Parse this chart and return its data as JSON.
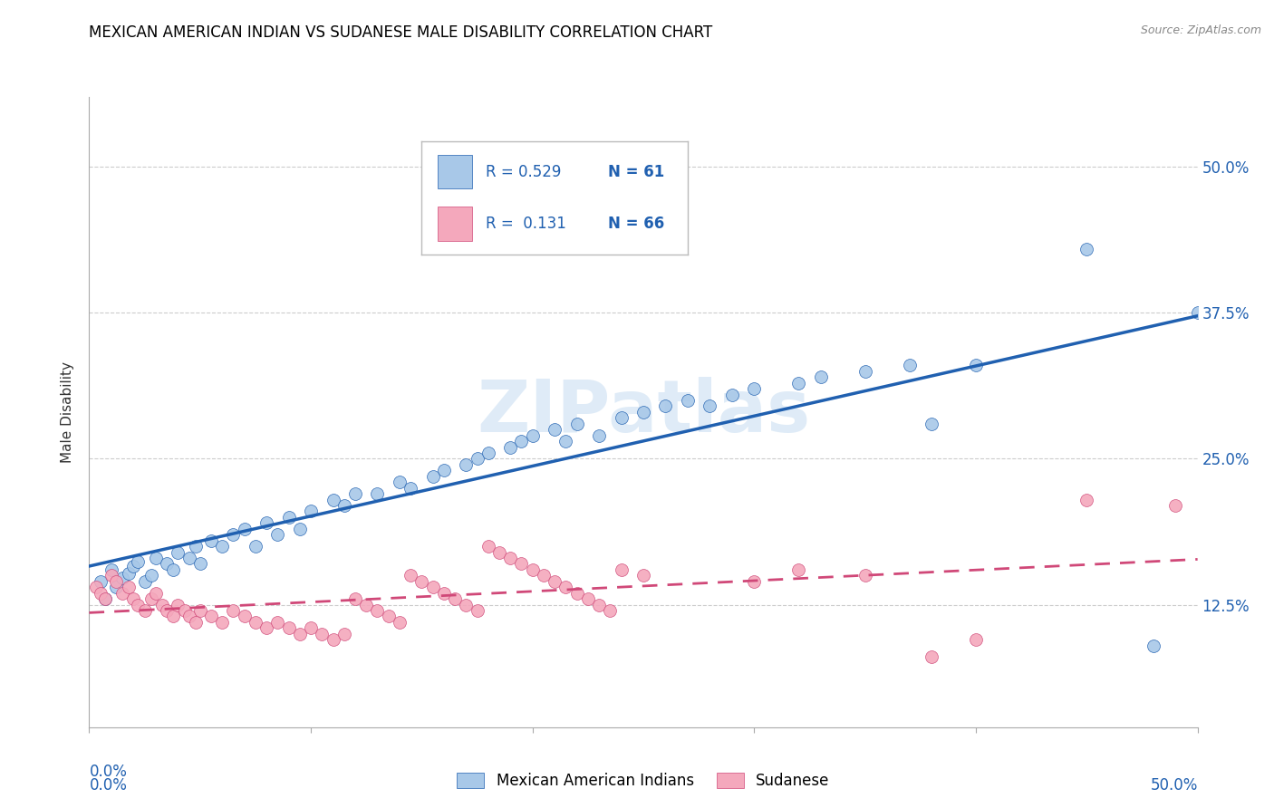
{
  "title": "MEXICAN AMERICAN INDIAN VS SUDANESE MALE DISABILITY CORRELATION CHART",
  "source": "Source: ZipAtlas.com",
  "ylabel": "Male Disability",
  "ytick_labels": [
    "12.5%",
    "25.0%",
    "37.5%",
    "50.0%"
  ],
  "ytick_values": [
    0.125,
    0.25,
    0.375,
    0.5
  ],
  "xlim": [
    0.0,
    0.5
  ],
  "ylim": [
    0.02,
    0.56
  ],
  "watermark": "ZIPatlas",
  "legend_r1": "R = 0.529",
  "legend_n1": "N = 61",
  "legend_r2": "R =  0.131",
  "legend_n2": "N = 66",
  "color_blue": "#A8C8E8",
  "color_pink": "#F4A8BC",
  "line_blue": "#2060B0",
  "line_pink": "#D04878",
  "background": "#FFFFFF",
  "blue_scatter_x": [
    0.005,
    0.007,
    0.01,
    0.012,
    0.015,
    0.018,
    0.02,
    0.022,
    0.025,
    0.028,
    0.03,
    0.035,
    0.038,
    0.04,
    0.045,
    0.048,
    0.05,
    0.055,
    0.06,
    0.065,
    0.07,
    0.075,
    0.08,
    0.085,
    0.09,
    0.095,
    0.1,
    0.11,
    0.115,
    0.12,
    0.13,
    0.14,
    0.145,
    0.155,
    0.16,
    0.17,
    0.175,
    0.18,
    0.19,
    0.195,
    0.2,
    0.21,
    0.215,
    0.22,
    0.23,
    0.24,
    0.25,
    0.26,
    0.27,
    0.28,
    0.29,
    0.3,
    0.32,
    0.33,
    0.35,
    0.37,
    0.38,
    0.4,
    0.45,
    0.48,
    0.5
  ],
  "blue_scatter_y": [
    0.145,
    0.13,
    0.155,
    0.14,
    0.148,
    0.152,
    0.158,
    0.162,
    0.145,
    0.15,
    0.165,
    0.16,
    0.155,
    0.17,
    0.165,
    0.175,
    0.16,
    0.18,
    0.175,
    0.185,
    0.19,
    0.175,
    0.195,
    0.185,
    0.2,
    0.19,
    0.205,
    0.215,
    0.21,
    0.22,
    0.22,
    0.23,
    0.225,
    0.235,
    0.24,
    0.245,
    0.25,
    0.255,
    0.26,
    0.265,
    0.27,
    0.275,
    0.265,
    0.28,
    0.27,
    0.285,
    0.29,
    0.295,
    0.3,
    0.295,
    0.305,
    0.31,
    0.315,
    0.32,
    0.325,
    0.33,
    0.28,
    0.33,
    0.43,
    0.09,
    0.375
  ],
  "pink_scatter_x": [
    0.003,
    0.005,
    0.007,
    0.01,
    0.012,
    0.015,
    0.018,
    0.02,
    0.022,
    0.025,
    0.028,
    0.03,
    0.033,
    0.035,
    0.038,
    0.04,
    0.043,
    0.045,
    0.048,
    0.05,
    0.055,
    0.06,
    0.065,
    0.07,
    0.075,
    0.08,
    0.085,
    0.09,
    0.095,
    0.1,
    0.105,
    0.11,
    0.115,
    0.12,
    0.125,
    0.13,
    0.135,
    0.14,
    0.145,
    0.15,
    0.155,
    0.16,
    0.165,
    0.17,
    0.175,
    0.18,
    0.185,
    0.19,
    0.195,
    0.2,
    0.205,
    0.21,
    0.215,
    0.22,
    0.225,
    0.23,
    0.235,
    0.24,
    0.25,
    0.3,
    0.32,
    0.35,
    0.38,
    0.4,
    0.45,
    0.49
  ],
  "pink_scatter_y": [
    0.14,
    0.135,
    0.13,
    0.15,
    0.145,
    0.135,
    0.14,
    0.13,
    0.125,
    0.12,
    0.13,
    0.135,
    0.125,
    0.12,
    0.115,
    0.125,
    0.12,
    0.115,
    0.11,
    0.12,
    0.115,
    0.11,
    0.12,
    0.115,
    0.11,
    0.105,
    0.11,
    0.105,
    0.1,
    0.105,
    0.1,
    0.095,
    0.1,
    0.13,
    0.125,
    0.12,
    0.115,
    0.11,
    0.15,
    0.145,
    0.14,
    0.135,
    0.13,
    0.125,
    0.12,
    0.175,
    0.17,
    0.165,
    0.16,
    0.155,
    0.15,
    0.145,
    0.14,
    0.135,
    0.13,
    0.125,
    0.12,
    0.155,
    0.15,
    0.145,
    0.155,
    0.15,
    0.08,
    0.095,
    0.215,
    0.21
  ]
}
